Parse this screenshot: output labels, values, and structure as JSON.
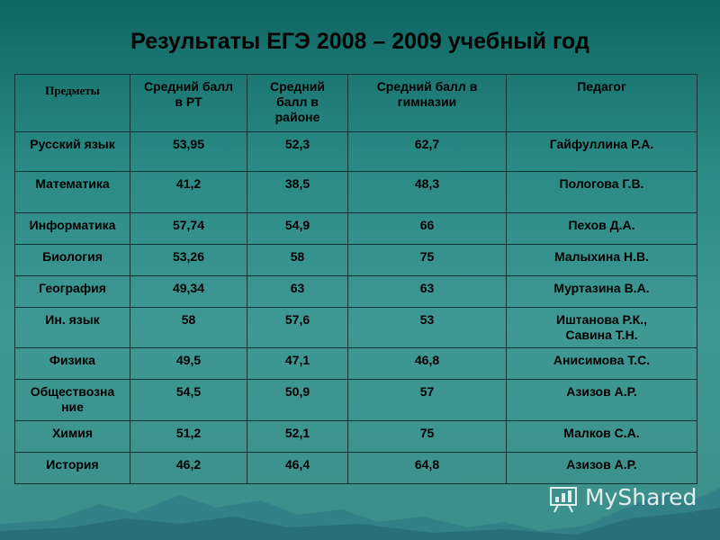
{
  "title": "Результаты ЕГЭ 2008 – 2009 учебный год",
  "table": {
    "headers": [
      "Предметы",
      "Средний балл\nв РТ",
      "Средний\nбалл в\nрайоне",
      "Средний балл в\nгимназии",
      "Педагог"
    ],
    "rows": [
      [
        "Русский язык",
        "53,95",
        "52,3",
        "62,7",
        "Гайфуллина Р.А."
      ],
      [
        "Математика",
        "41,2",
        "38,5",
        "48,3",
        "Пологова  Г.В."
      ],
      [
        "Информатика",
        "57,74",
        "54,9",
        "66",
        "Пехов Д.А."
      ],
      [
        "Биология",
        "53,26",
        "58",
        "75",
        "Малыхина Н.В."
      ],
      [
        "География",
        "49,34",
        "63",
        "63",
        "Муртазина  В.А."
      ],
      [
        "Ин. язык",
        "58",
        "57,6",
        "53",
        "Иштанова Р.К.,\nСавина Т.Н."
      ],
      [
        "Физика",
        "49,5",
        "47,1",
        "46,8",
        "Анисимова Т.С."
      ],
      [
        "Обществозна\nние",
        "54,5",
        "50,9",
        "57",
        "Азизов А.Р."
      ],
      [
        "Химия",
        "51,2",
        "52,1",
        "75",
        "Малков С.А."
      ],
      [
        "История",
        "46,2",
        "46,4",
        "64,8",
        "Азизов А.Р."
      ]
    ]
  },
  "watermark": {
    "text": "MyShared",
    "icon": "presentation-board-icon"
  }
}
